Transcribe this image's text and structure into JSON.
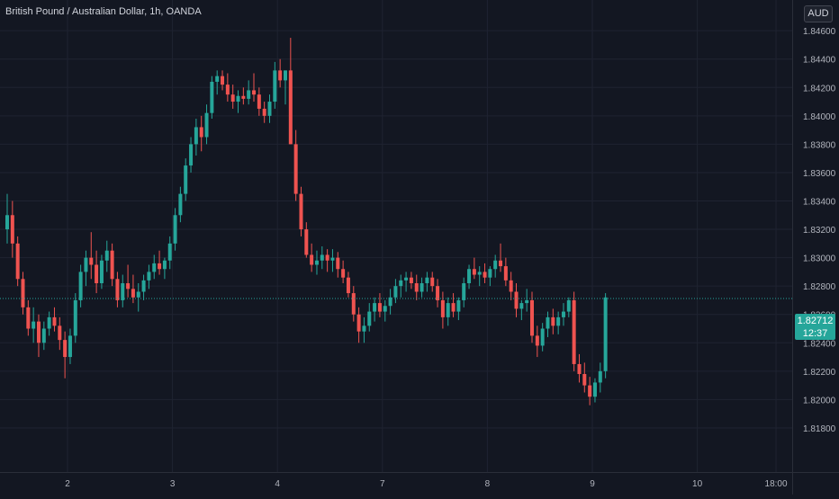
{
  "header": {
    "symbol_title": "British Pound / Australian Dollar, 1h, OANDA",
    "currency_button": "AUD"
  },
  "price_badge": {
    "price": "1.82712",
    "countdown": "12:37"
  },
  "colors": {
    "background": "#131722",
    "grid": "#1f2331",
    "up": "#26a69a",
    "down": "#ef5350",
    "text": "#d1d4dc",
    "axis_text": "#b2b5be"
  },
  "chart_data": {
    "type": "candlestick",
    "title": "British Pound / Australian Dollar, 1h, OANDA",
    "ylim": [
      1.816,
      1.8475
    ],
    "y_ticks": [
      "1.81800",
      "1.82000",
      "1.82200",
      "1.82400",
      "1.82600",
      "1.82800",
      "1.83000",
      "1.83200",
      "1.83400",
      "1.83600",
      "1.83800",
      "1.84000",
      "1.84200",
      "1.84400",
      "1.84600"
    ],
    "x_ticks": [
      {
        "label": "2",
        "index": 13
      },
      {
        "label": "3",
        "index": 33
      },
      {
        "label": "4",
        "index": 53
      },
      {
        "label": "7",
        "index": 73
      },
      {
        "label": "8",
        "index": 93
      },
      {
        "label": "9",
        "index": 113
      },
      {
        "label": "10",
        "index": 133
      },
      {
        "label": "18:00",
        "index": 148
      }
    ],
    "last_price": 1.82712,
    "grid": true,
    "candles": [
      [
        1.832,
        1.8345,
        1.831,
        1.833
      ],
      [
        1.833,
        1.834,
        1.83,
        1.831
      ],
      [
        1.831,
        1.8315,
        1.828,
        1.8285
      ],
      [
        1.8285,
        1.829,
        1.826,
        1.8265
      ],
      [
        1.8265,
        1.827,
        1.8245,
        1.825
      ],
      [
        1.825,
        1.8265,
        1.824,
        1.8255
      ],
      [
        1.8255,
        1.826,
        1.823,
        1.824
      ],
      [
        1.824,
        1.8255,
        1.8235,
        1.825
      ],
      [
        1.825,
        1.8262,
        1.8245,
        1.8258
      ],
      [
        1.8258,
        1.8265,
        1.8248,
        1.8252
      ],
      [
        1.8252,
        1.8258,
        1.8235,
        1.8242
      ],
      [
        1.8242,
        1.8248,
        1.8215,
        1.823
      ],
      [
        1.823,
        1.825,
        1.8225,
        1.8245
      ],
      [
        1.8245,
        1.8275,
        1.824,
        1.827
      ],
      [
        1.827,
        1.8295,
        1.8265,
        1.829
      ],
      [
        1.829,
        1.8305,
        1.828,
        1.83
      ],
      [
        1.83,
        1.8318,
        1.8285,
        1.8295
      ],
      [
        1.8295,
        1.8305,
        1.8275,
        1.8282
      ],
      [
        1.8282,
        1.8302,
        1.8278,
        1.8298
      ],
      [
        1.8298,
        1.8312,
        1.829,
        1.8305
      ],
      [
        1.8305,
        1.831,
        1.828,
        1.8285
      ],
      [
        1.8285,
        1.829,
        1.8265,
        1.827
      ],
      [
        1.827,
        1.8288,
        1.8265,
        1.8282
      ],
      [
        1.8282,
        1.8295,
        1.8272,
        1.8278
      ],
      [
        1.8278,
        1.8288,
        1.8268,
        1.8272
      ],
      [
        1.8272,
        1.8282,
        1.8262,
        1.8276
      ],
      [
        1.8276,
        1.8288,
        1.827,
        1.8284
      ],
      [
        1.8284,
        1.8295,
        1.8278,
        1.829
      ],
      [
        1.829,
        1.8302,
        1.8285,
        1.8296
      ],
      [
        1.8296,
        1.8305,
        1.8288,
        1.8292
      ],
      [
        1.8292,
        1.83,
        1.8285,
        1.8298
      ],
      [
        1.8298,
        1.8315,
        1.8292,
        1.831
      ],
      [
        1.831,
        1.8335,
        1.8305,
        1.833
      ],
      [
        1.833,
        1.835,
        1.8325,
        1.8345
      ],
      [
        1.8345,
        1.837,
        1.834,
        1.8365
      ],
      [
        1.8365,
        1.8385,
        1.836,
        1.838
      ],
      [
        1.838,
        1.8398,
        1.8372,
        1.8392
      ],
      [
        1.8392,
        1.84,
        1.8375,
        1.8385
      ],
      [
        1.8385,
        1.8408,
        1.838,
        1.8402
      ],
      [
        1.8402,
        1.8428,
        1.8398,
        1.8424
      ],
      [
        1.8424,
        1.8432,
        1.8415,
        1.8428
      ],
      [
        1.8428,
        1.8432,
        1.8418,
        1.8422
      ],
      [
        1.8422,
        1.843,
        1.841,
        1.8415
      ],
      [
        1.8415,
        1.8422,
        1.8405,
        1.841
      ],
      [
        1.841,
        1.8418,
        1.8402,
        1.8414
      ],
      [
        1.8414,
        1.842,
        1.8408,
        1.8412
      ],
      [
        1.8412,
        1.8425,
        1.8408,
        1.8418
      ],
      [
        1.8418,
        1.843,
        1.841,
        1.8415
      ],
      [
        1.8415,
        1.842,
        1.84,
        1.8405
      ],
      [
        1.8405,
        1.841,
        1.8395,
        1.84
      ],
      [
        1.84,
        1.8415,
        1.8395,
        1.841
      ],
      [
        1.841,
        1.8438,
        1.8405,
        1.8432
      ],
      [
        1.8432,
        1.844,
        1.842,
        1.8425
      ],
      [
        1.8425,
        1.8432,
        1.8408,
        1.8432
      ],
      [
        1.8432,
        1.8455,
        1.838,
        1.838
      ],
      [
        1.838,
        1.839,
        1.834,
        1.8345
      ],
      [
        1.8345,
        1.835,
        1.8315,
        1.832
      ],
      [
        1.832,
        1.8325,
        1.83,
        1.8302
      ],
      [
        1.8302,
        1.831,
        1.829,
        1.8295
      ],
      [
        1.8295,
        1.8305,
        1.8288,
        1.8298
      ],
      [
        1.8298,
        1.8308,
        1.8292,
        1.8302
      ],
      [
        1.8302,
        1.8306,
        1.829,
        1.8298
      ],
      [
        1.8298,
        1.8306,
        1.829,
        1.83
      ],
      [
        1.83,
        1.8304,
        1.8286,
        1.8292
      ],
      [
        1.8292,
        1.8298,
        1.8282,
        1.8286
      ],
      [
        1.8286,
        1.829,
        1.8272,
        1.8275
      ],
      [
        1.8275,
        1.828,
        1.8255,
        1.826
      ],
      [
        1.826,
        1.8265,
        1.824,
        1.8248
      ],
      [
        1.8248,
        1.8258,
        1.824,
        1.8252
      ],
      [
        1.8252,
        1.8268,
        1.8248,
        1.8262
      ],
      [
        1.8262,
        1.8272,
        1.8255,
        1.8268
      ],
      [
        1.8268,
        1.8275,
        1.8258,
        1.8262
      ],
      [
        1.8262,
        1.827,
        1.8255,
        1.8266
      ],
      [
        1.8266,
        1.8278,
        1.826,
        1.8272
      ],
      [
        1.8272,
        1.8285,
        1.8268,
        1.828
      ],
      [
        1.828,
        1.8288,
        1.8272,
        1.8284
      ],
      [
        1.8284,
        1.829,
        1.8276,
        1.8286
      ],
      [
        1.8286,
        1.829,
        1.8278,
        1.8282
      ],
      [
        1.8282,
        1.8288,
        1.827,
        1.8276
      ],
      [
        1.8276,
        1.8286,
        1.8272,
        1.8282
      ],
      [
        1.8282,
        1.829,
        1.8276,
        1.8286
      ],
      [
        1.8286,
        1.829,
        1.8276,
        1.828
      ],
      [
        1.828,
        1.8285,
        1.8265,
        1.827
      ],
      [
        1.827,
        1.8276,
        1.825,
        1.8258
      ],
      [
        1.8258,
        1.8272,
        1.8252,
        1.8268
      ],
      [
        1.8268,
        1.8275,
        1.8258,
        1.8262
      ],
      [
        1.8262,
        1.8272,
        1.8256,
        1.827
      ],
      [
        1.827,
        1.8286,
        1.8265,
        1.8282
      ],
      [
        1.8282,
        1.8295,
        1.8278,
        1.8292
      ],
      [
        1.8292,
        1.83,
        1.8285,
        1.8288
      ],
      [
        1.8288,
        1.8294,
        1.828,
        1.829
      ],
      [
        1.829,
        1.8296,
        1.8282,
        1.8286
      ],
      [
        1.8286,
        1.8294,
        1.828,
        1.8292
      ],
      [
        1.8292,
        1.8302,
        1.8286,
        1.8298
      ],
      [
        1.8298,
        1.831,
        1.829,
        1.8294
      ],
      [
        1.8294,
        1.83,
        1.828,
        1.8284
      ],
      [
        1.8284,
        1.829,
        1.827,
        1.8276
      ],
      [
        1.8276,
        1.8282,
        1.8258,
        1.8264
      ],
      [
        1.8264,
        1.827,
        1.8256,
        1.8268
      ],
      [
        1.8268,
        1.8278,
        1.8262,
        1.827
      ],
      [
        1.827,
        1.8276,
        1.824,
        1.8245
      ],
      [
        1.8245,
        1.8252,
        1.823,
        1.8238
      ],
      [
        1.8238,
        1.8254,
        1.8234,
        1.825
      ],
      [
        1.825,
        1.8262,
        1.8244,
        1.8258
      ],
      [
        1.8258,
        1.8264,
        1.8246,
        1.8252
      ],
      [
        1.8252,
        1.8262,
        1.8246,
        1.8258
      ],
      [
        1.8258,
        1.8268,
        1.8252,
        1.8262
      ],
      [
        1.8262,
        1.8272,
        1.8258,
        1.827
      ],
      [
        1.827,
        1.8276,
        1.822,
        1.8225
      ],
      [
        1.8225,
        1.8232,
        1.8212,
        1.8218
      ],
      [
        1.8218,
        1.8226,
        1.8205,
        1.821
      ],
      [
        1.821,
        1.8216,
        1.8196,
        1.8202
      ],
      [
        1.8202,
        1.8215,
        1.8198,
        1.8212
      ],
      [
        1.8212,
        1.8226,
        1.8205,
        1.822
      ],
      [
        1.822,
        1.8275,
        1.8215,
        1.8272
      ]
    ]
  }
}
